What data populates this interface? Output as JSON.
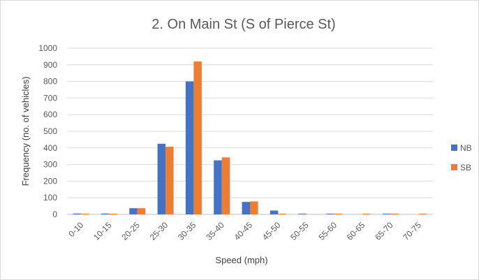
{
  "chart_data": {
    "type": "bar",
    "title": "2. On Main St (S of Pierce St)",
    "xlabel": "Speed (mph)",
    "ylabel": "Frequency (no. of vehicles)",
    "ylim": [
      0,
      1000
    ],
    "yticks": [
      "0",
      "100",
      "200",
      "300",
      "400",
      "500",
      "600",
      "700",
      "800",
      "900",
      "1000"
    ],
    "grid": true,
    "legend_position": "right",
    "categories": [
      "0-10",
      "10-15",
      "20-25",
      "25-30",
      "30-35",
      "35-40",
      "40-45",
      "45-50",
      "50-55",
      "55-60",
      "60-65",
      "65-70",
      "70-75"
    ],
    "series": [
      {
        "name": "NB",
        "color": "#4472c4",
        "values": [
          5,
          5,
          37,
          425,
          800,
          325,
          75,
          23,
          4,
          4,
          0,
          4,
          0
        ]
      },
      {
        "name": "SB",
        "color": "#ed7d31",
        "values": [
          4,
          4,
          37,
          407,
          920,
          343,
          78,
          4,
          0,
          4,
          4,
          4,
          4
        ]
      }
    ]
  }
}
